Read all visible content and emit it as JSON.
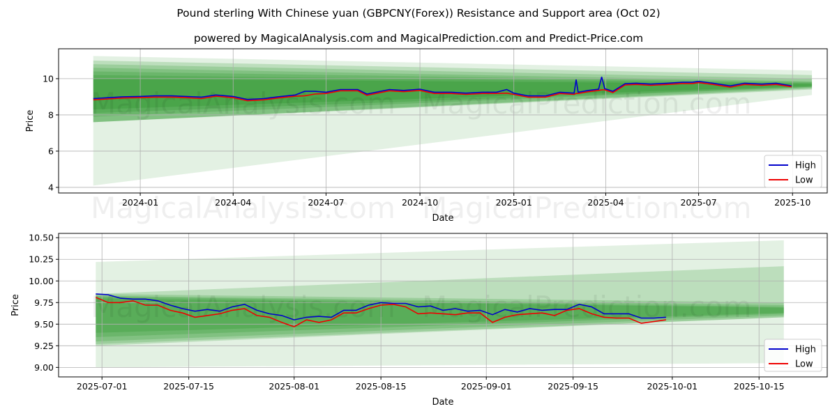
{
  "title": "Pound sterling With Chinese yuan (GBPCNY(Forex)) Resistance and Support area (Oct 02)",
  "subtitle": "powered by MagicalAnalysis.com and MagicalPrediction.com and Predict-Price.com",
  "watermarks": [
    "MagicalAnalysis.com",
    "MagicalPrediction.com"
  ],
  "colors": {
    "high": "#0000cc",
    "low": "#ee0000",
    "band": "#008000"
  },
  "chart_data": [
    {
      "type": "line",
      "xlabel": "Date",
      "ylabel": "Price",
      "xlim": [
        "2023-10-13",
        "2025-11-04"
      ],
      "ylim": [
        3.69,
        11.65
      ],
      "grid": true,
      "legend_placement": "bottom-right",
      "x_ticks": [
        "2024-01",
        "2024-04",
        "2024-07",
        "2024-10",
        "2025-01",
        "2025-04",
        "2025-07",
        "2025-10"
      ],
      "y_ticks": [
        4,
        6,
        8,
        10
      ],
      "band_range": [
        "2023-11-16",
        "2025-10-20"
      ],
      "bands": [
        [
          4.1,
          11.25,
          9.1,
          10.45
        ],
        [
          7.6,
          11.0,
          9.4,
          10.2
        ],
        [
          7.6,
          10.8,
          9.45,
          10.0
        ],
        [
          7.6,
          10.6,
          9.5,
          9.85
        ],
        [
          7.9,
          10.4,
          9.55,
          9.8
        ],
        [
          8.1,
          10.2,
          9.55,
          9.75
        ],
        [
          8.3,
          10.0,
          9.6,
          9.7
        ]
      ],
      "dates": [
        "2023-11-16",
        "2023-12-01",
        "2023-12-15",
        "2024-01-01",
        "2024-01-15",
        "2024-02-01",
        "2024-02-15",
        "2024-03-01",
        "2024-03-15",
        "2024-04-01",
        "2024-04-15",
        "2024-05-01",
        "2024-05-15",
        "2024-06-01",
        "2024-06-10",
        "2024-06-20",
        "2024-07-01",
        "2024-07-15",
        "2024-08-01",
        "2024-08-10",
        "2024-09-01",
        "2024-09-15",
        "2024-10-01",
        "2024-10-15",
        "2024-11-01",
        "2024-11-15",
        "2024-12-01",
        "2024-12-15",
        "2024-12-25",
        "2025-01-01",
        "2025-01-15",
        "2025-02-01",
        "2025-02-15",
        "2025-03-01",
        "2025-03-03",
        "2025-03-05",
        "2025-03-15",
        "2025-03-25",
        "2025-03-28",
        "2025-03-31",
        "2025-04-08",
        "2025-04-20",
        "2025-05-01",
        "2025-05-15",
        "2025-06-01",
        "2025-06-15",
        "2025-06-25",
        "2025-07-01",
        "2025-07-15",
        "2025-08-01",
        "2025-08-15",
        "2025-09-01",
        "2025-09-15",
        "2025-09-30"
      ],
      "series": [
        {
          "name": "High",
          "values": [
            8.9,
            8.95,
            9.0,
            9.02,
            9.05,
            9.05,
            9.02,
            8.98,
            9.1,
            9.02,
            8.85,
            8.9,
            9.0,
            9.1,
            9.3,
            9.3,
            9.25,
            9.4,
            9.4,
            9.15,
            9.4,
            9.35,
            9.42,
            9.25,
            9.25,
            9.2,
            9.25,
            9.25,
            9.4,
            9.2,
            9.05,
            9.05,
            9.25,
            9.2,
            9.95,
            9.25,
            9.35,
            9.42,
            10.1,
            9.45,
            9.3,
            9.72,
            9.75,
            9.7,
            9.75,
            9.8,
            9.8,
            9.85,
            9.75,
            9.6,
            9.75,
            9.7,
            9.75,
            9.6
          ]
        },
        {
          "name": "Low",
          "values": [
            8.83,
            8.88,
            8.93,
            8.95,
            8.98,
            8.98,
            8.95,
            8.9,
            9.03,
            8.95,
            8.78,
            8.83,
            8.93,
            9.03,
            9.05,
            9.15,
            9.18,
            9.33,
            9.33,
            9.08,
            9.33,
            9.28,
            9.35,
            9.18,
            9.18,
            9.13,
            9.18,
            9.18,
            9.2,
            9.13,
            8.98,
            8.98,
            9.18,
            9.13,
            9.18,
            9.18,
            9.28,
            9.35,
            9.38,
            9.38,
            9.23,
            9.65,
            9.68,
            9.63,
            9.68,
            9.73,
            9.73,
            9.78,
            9.68,
            9.53,
            9.68,
            9.63,
            9.68,
            9.55
          ]
        }
      ]
    },
    {
      "type": "line",
      "xlabel": "Date",
      "ylabel": "Price",
      "xlim": [
        "2025-06-24",
        "2025-10-26"
      ],
      "ylim": [
        8.89,
        10.55
      ],
      "grid": true,
      "legend_placement": "bottom-right",
      "x_ticks": [
        "2025-07-01",
        "2025-07-15",
        "2025-08-01",
        "2025-08-15",
        "2025-09-01",
        "2025-09-15",
        "2025-10-01",
        "2025-10-15"
      ],
      "y_ticks": [
        "9.00",
        "9.25",
        "9.50",
        "9.75",
        "10.00",
        "10.25",
        "10.50"
      ],
      "band_range": [
        "2025-06-30",
        "2025-10-19"
      ],
      "bands": [
        [
          9.0,
          10.22,
          9.05,
          10.47
        ],
        [
          9.25,
          9.85,
          9.58,
          10.17
        ],
        [
          9.27,
          9.85,
          9.58,
          9.75
        ],
        [
          9.3,
          9.83,
          9.6,
          9.72
        ],
        [
          9.35,
          9.82,
          9.62,
          9.7
        ],
        [
          9.4,
          9.8,
          9.63,
          9.69
        ]
      ],
      "start_date": "2025-06-30",
      "step_days": 2,
      "series": [
        {
          "name": "High",
          "values": [
            9.85,
            9.84,
            9.8,
            9.79,
            9.79,
            9.77,
            9.72,
            9.68,
            9.65,
            9.67,
            9.65,
            9.7,
            9.73,
            9.66,
            9.62,
            9.6,
            9.55,
            9.58,
            9.59,
            9.58,
            9.66,
            9.66,
            9.72,
            9.75,
            9.74,
            9.74,
            9.7,
            9.71,
            9.66,
            9.68,
            9.65,
            9.66,
            9.61,
            9.67,
            9.64,
            9.68,
            9.66,
            9.67,
            9.67,
            9.73,
            9.7,
            9.62,
            9.62,
            9.62,
            9.57,
            9.57,
            9.58
          ]
        },
        {
          "name": "Low",
          "values": [
            9.81,
            9.75,
            9.75,
            9.77,
            9.72,
            9.72,
            9.66,
            9.63,
            9.58,
            9.6,
            9.62,
            9.66,
            9.68,
            9.6,
            9.58,
            9.52,
            9.47,
            9.55,
            9.52,
            9.55,
            9.63,
            9.63,
            9.68,
            9.72,
            9.73,
            9.7,
            9.62,
            9.63,
            9.62,
            9.61,
            9.63,
            9.63,
            9.52,
            9.58,
            9.61,
            9.62,
            9.63,
            9.6,
            9.66,
            9.68,
            9.62,
            9.58,
            9.57,
            9.57,
            9.51,
            9.53,
            9.55
          ]
        }
      ]
    }
  ]
}
